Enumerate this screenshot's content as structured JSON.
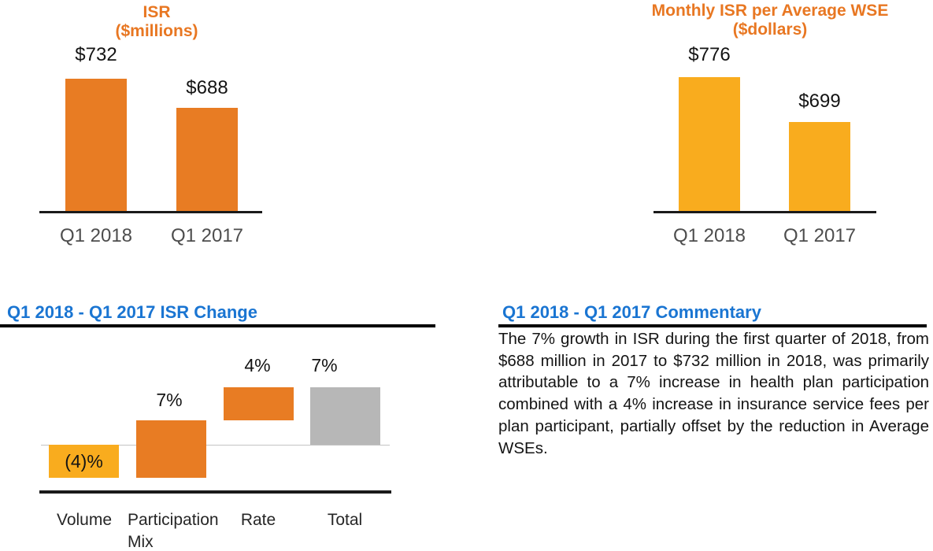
{
  "page": {
    "background": "#FFFFFF",
    "accent_orange": "#E87C23",
    "accent_amber": "#F9AC1E",
    "accent_gray": "#B7B7B7",
    "heading_blue": "#1A75D2"
  },
  "chart_data": [
    {
      "type": "bar",
      "title": "ISR",
      "subtitle": "($millions)",
      "categories": [
        "Q1 2018",
        "Q1 2017"
      ],
      "values": [
        732,
        688
      ],
      "data_labels": [
        "$732",
        "$688"
      ],
      "bar_color": "#E87C23",
      "legend": "none",
      "grid": "off",
      "axis_note": "only x baseline drawn; bars not zero-based"
    },
    {
      "type": "bar",
      "title": "Monthly ISR per Average WSE",
      "subtitle": "($dollars)",
      "categories": [
        "Q1 2018",
        "Q1 2017"
      ],
      "values": [
        776,
        699
      ],
      "data_labels": [
        "$776",
        "$699"
      ],
      "bar_color": "#F9AC1E",
      "legend": "none",
      "grid": "off",
      "axis_note": "only x baseline drawn; bars not zero-based"
    },
    {
      "type": "bar",
      "subtype": "waterfall",
      "title": "Q1 2018 - Q1 2017 ISR Change",
      "categories": [
        "Volume",
        "Participation Mix",
        "Rate",
        "Total"
      ],
      "values": [
        -4,
        7,
        4,
        7
      ],
      "data_labels": [
        "(4)%",
        "7%",
        "4%",
        "7%"
      ],
      "bar_segments": [
        {
          "start": 0,
          "end": -4
        },
        {
          "start": -4,
          "end": 3
        },
        {
          "start": 3,
          "end": 7
        },
        {
          "start": 0,
          "end": 7
        }
      ],
      "bar_colors": [
        "#F9AC1E",
        "#E87C23",
        "#E87C23",
        "#B7B7B7"
      ],
      "ylim": [
        -4,
        7
      ],
      "legend": "none",
      "grid": "off",
      "axis_note": "thin gray zero line plus black bottom axis"
    }
  ],
  "commentary": {
    "heading": "Q1 2018 - Q1 2017 Commentary",
    "body": "The 7% growth in ISR during the first quarter of 2018, from $688 million in 2017 to $732 million in 2018, was primarily attributable to a 7% increase in health plan participation combined with a 4% increase in insurance service fees per plan participant, partially offset by the reduction in Average WSEs."
  }
}
